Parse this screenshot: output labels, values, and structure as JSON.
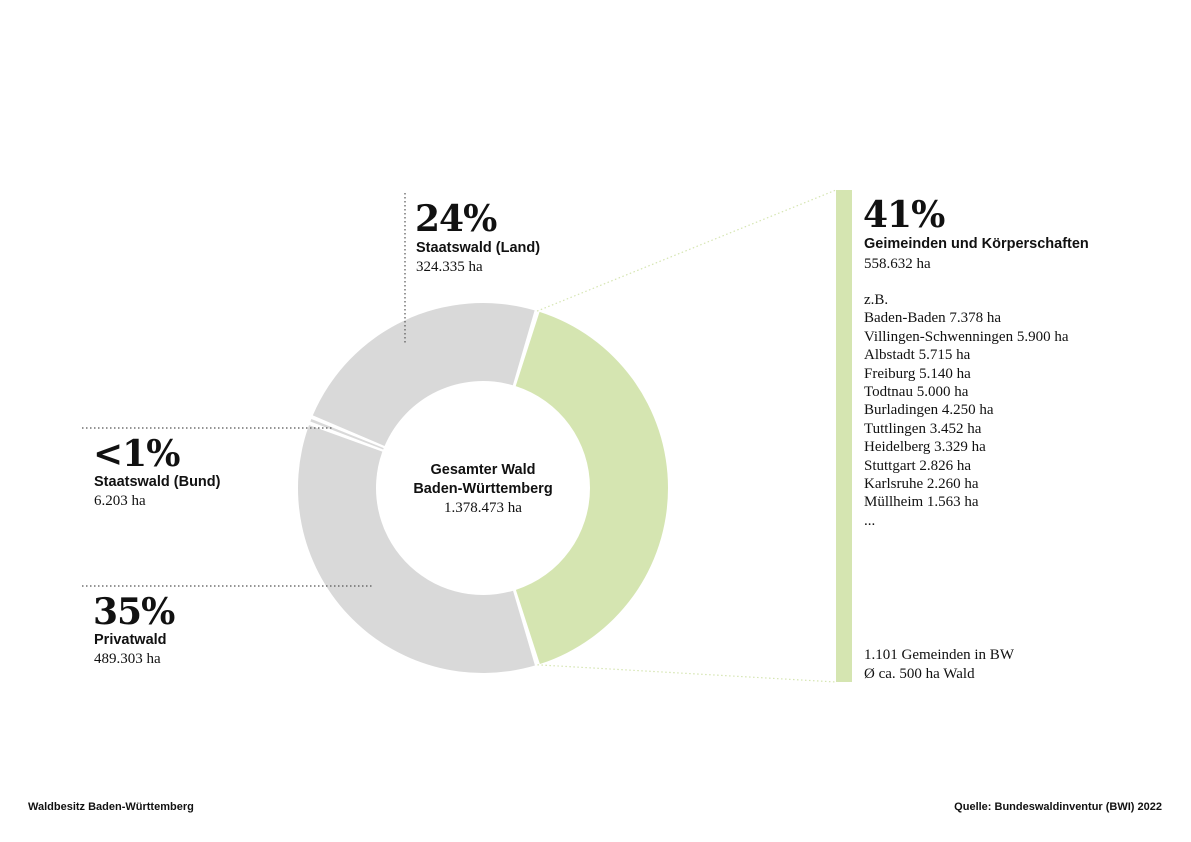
{
  "colors": {
    "grey_segment": "#d9d9d9",
    "green_segment": "#d5e5b1",
    "leader_line": "#555555",
    "text": "#111111"
  },
  "chart_data": {
    "type": "pie",
    "center": {
      "title_line1": "Gesamter Wald",
      "title_line2": "Baden-Württemberg",
      "total": "1.378.473 ha"
    },
    "segments": [
      {
        "key": "gemeinden",
        "percent_label": "41%",
        "label": "Geimeinden und Körperschaften",
        "area_label": "558.632 ha",
        "value_ha": 558632,
        "color": "#d5e5b1"
      },
      {
        "key": "privat",
        "percent_label": "35%",
        "label": "Privatwald",
        "area_label": "489.303 ha",
        "value_ha": 489303,
        "color": "#d9d9d9"
      },
      {
        "key": "bund",
        "percent_label": "<1%",
        "label": "Staatswald (Bund)",
        "area_label": "6.203 ha",
        "value_ha": 6203,
        "color": "#d9d9d9"
      },
      {
        "key": "land",
        "percent_label": "24%",
        "label": "Staatswald (Land)",
        "area_label": "324.335 ha",
        "value_ha": 324335,
        "color": "#d9d9d9"
      }
    ]
  },
  "examples": {
    "intro": "z.B.",
    "items": [
      "Baden-Baden 7.378 ha",
      "Villingen-Schwenningen 5.900 ha",
      "Albstadt 5.715 ha",
      "Freiburg 5.140 ha",
      "Todtnau 5.000 ha",
      "Burladingen 4.250 ha",
      "Tuttlingen 3.452 ha",
      "Heidelberg 3.329 ha",
      "Stuttgart 2.826 ha",
      "Karlsruhe 2.260 ha",
      "Müllheim 1.563 ha"
    ],
    "ellipsis": "..."
  },
  "footnote": {
    "line1": "1.101 Gemeinden in BW",
    "line2": "Ø ca. 500 ha Wald"
  },
  "footer": {
    "left": "Waldbesitz Baden-Württemberg",
    "right": "Quelle: Bundeswaldinventur (BWI) 2022"
  }
}
